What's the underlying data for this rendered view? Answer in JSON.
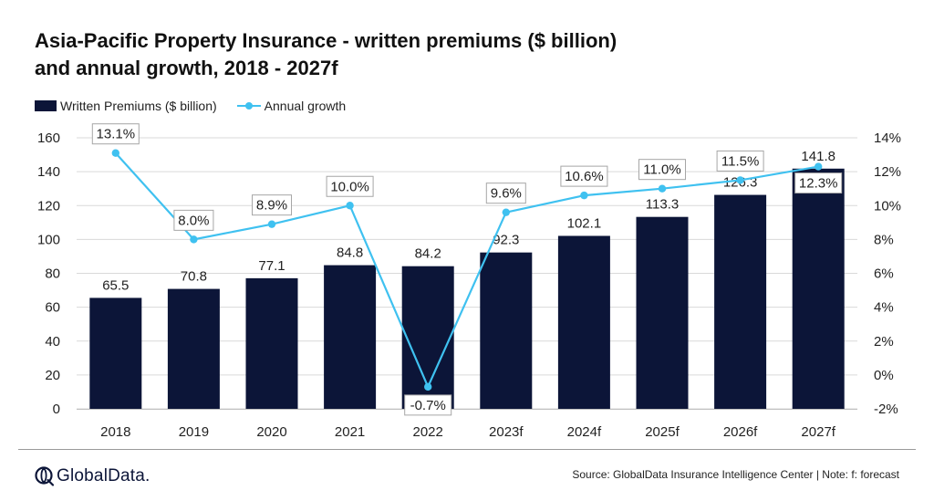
{
  "title_line1": "Asia-Pacific Property Insurance - written premiums ($ billion)",
  "title_line2": "and annual growth, 2018 - 2027f",
  "footer": {
    "logo_text": "GlobalData.",
    "source": "Source: GlobalData Insurance Intelligence Center | Note: f: forecast"
  },
  "colors": {
    "bar": "#0c1538",
    "line": "#3fc1f0",
    "grid": "#d9d9d9"
  },
  "chart_data": {
    "type": "bar+line",
    "categories": [
      "2018",
      "2019",
      "2020",
      "2021",
      "2022",
      "2023f",
      "2024f",
      "2025f",
      "2026f",
      "2027f"
    ],
    "series": [
      {
        "name": "Written Premiums ($ billion)",
        "type": "bar",
        "axis": "left",
        "values": [
          65.5,
          70.8,
          77.1,
          84.8,
          84.2,
          92.3,
          102.1,
          113.3,
          126.3,
          141.8
        ],
        "labels": [
          "65.5",
          "70.8",
          "77.1",
          "84.8",
          "84.2",
          "92.3",
          "102.1",
          "113.3",
          "126.3",
          "141.8"
        ]
      },
      {
        "name": "Annual growth",
        "type": "line",
        "axis": "right",
        "values": [
          13.1,
          8.0,
          8.9,
          10.0,
          -0.7,
          9.6,
          10.6,
          11.0,
          11.5,
          12.3
        ],
        "labels": [
          "13.1%",
          "8.0%",
          "8.9%",
          "10.0%",
          "-0.7%",
          "9.6%",
          "10.6%",
          "11.0%",
          "11.5%",
          "12.3%"
        ]
      }
    ],
    "y_left": {
      "min": 0,
      "max": 160,
      "ticks": [
        "0",
        "20",
        "40",
        "60",
        "80",
        "100",
        "120",
        "140",
        "160"
      ]
    },
    "y_right": {
      "min": -2,
      "max": 14,
      "ticks": [
        "-2%",
        "0%",
        "2%",
        "4%",
        "6%",
        "8%",
        "10%",
        "12%",
        "14%"
      ]
    },
    "grid": true,
    "legend": "top-left"
  }
}
